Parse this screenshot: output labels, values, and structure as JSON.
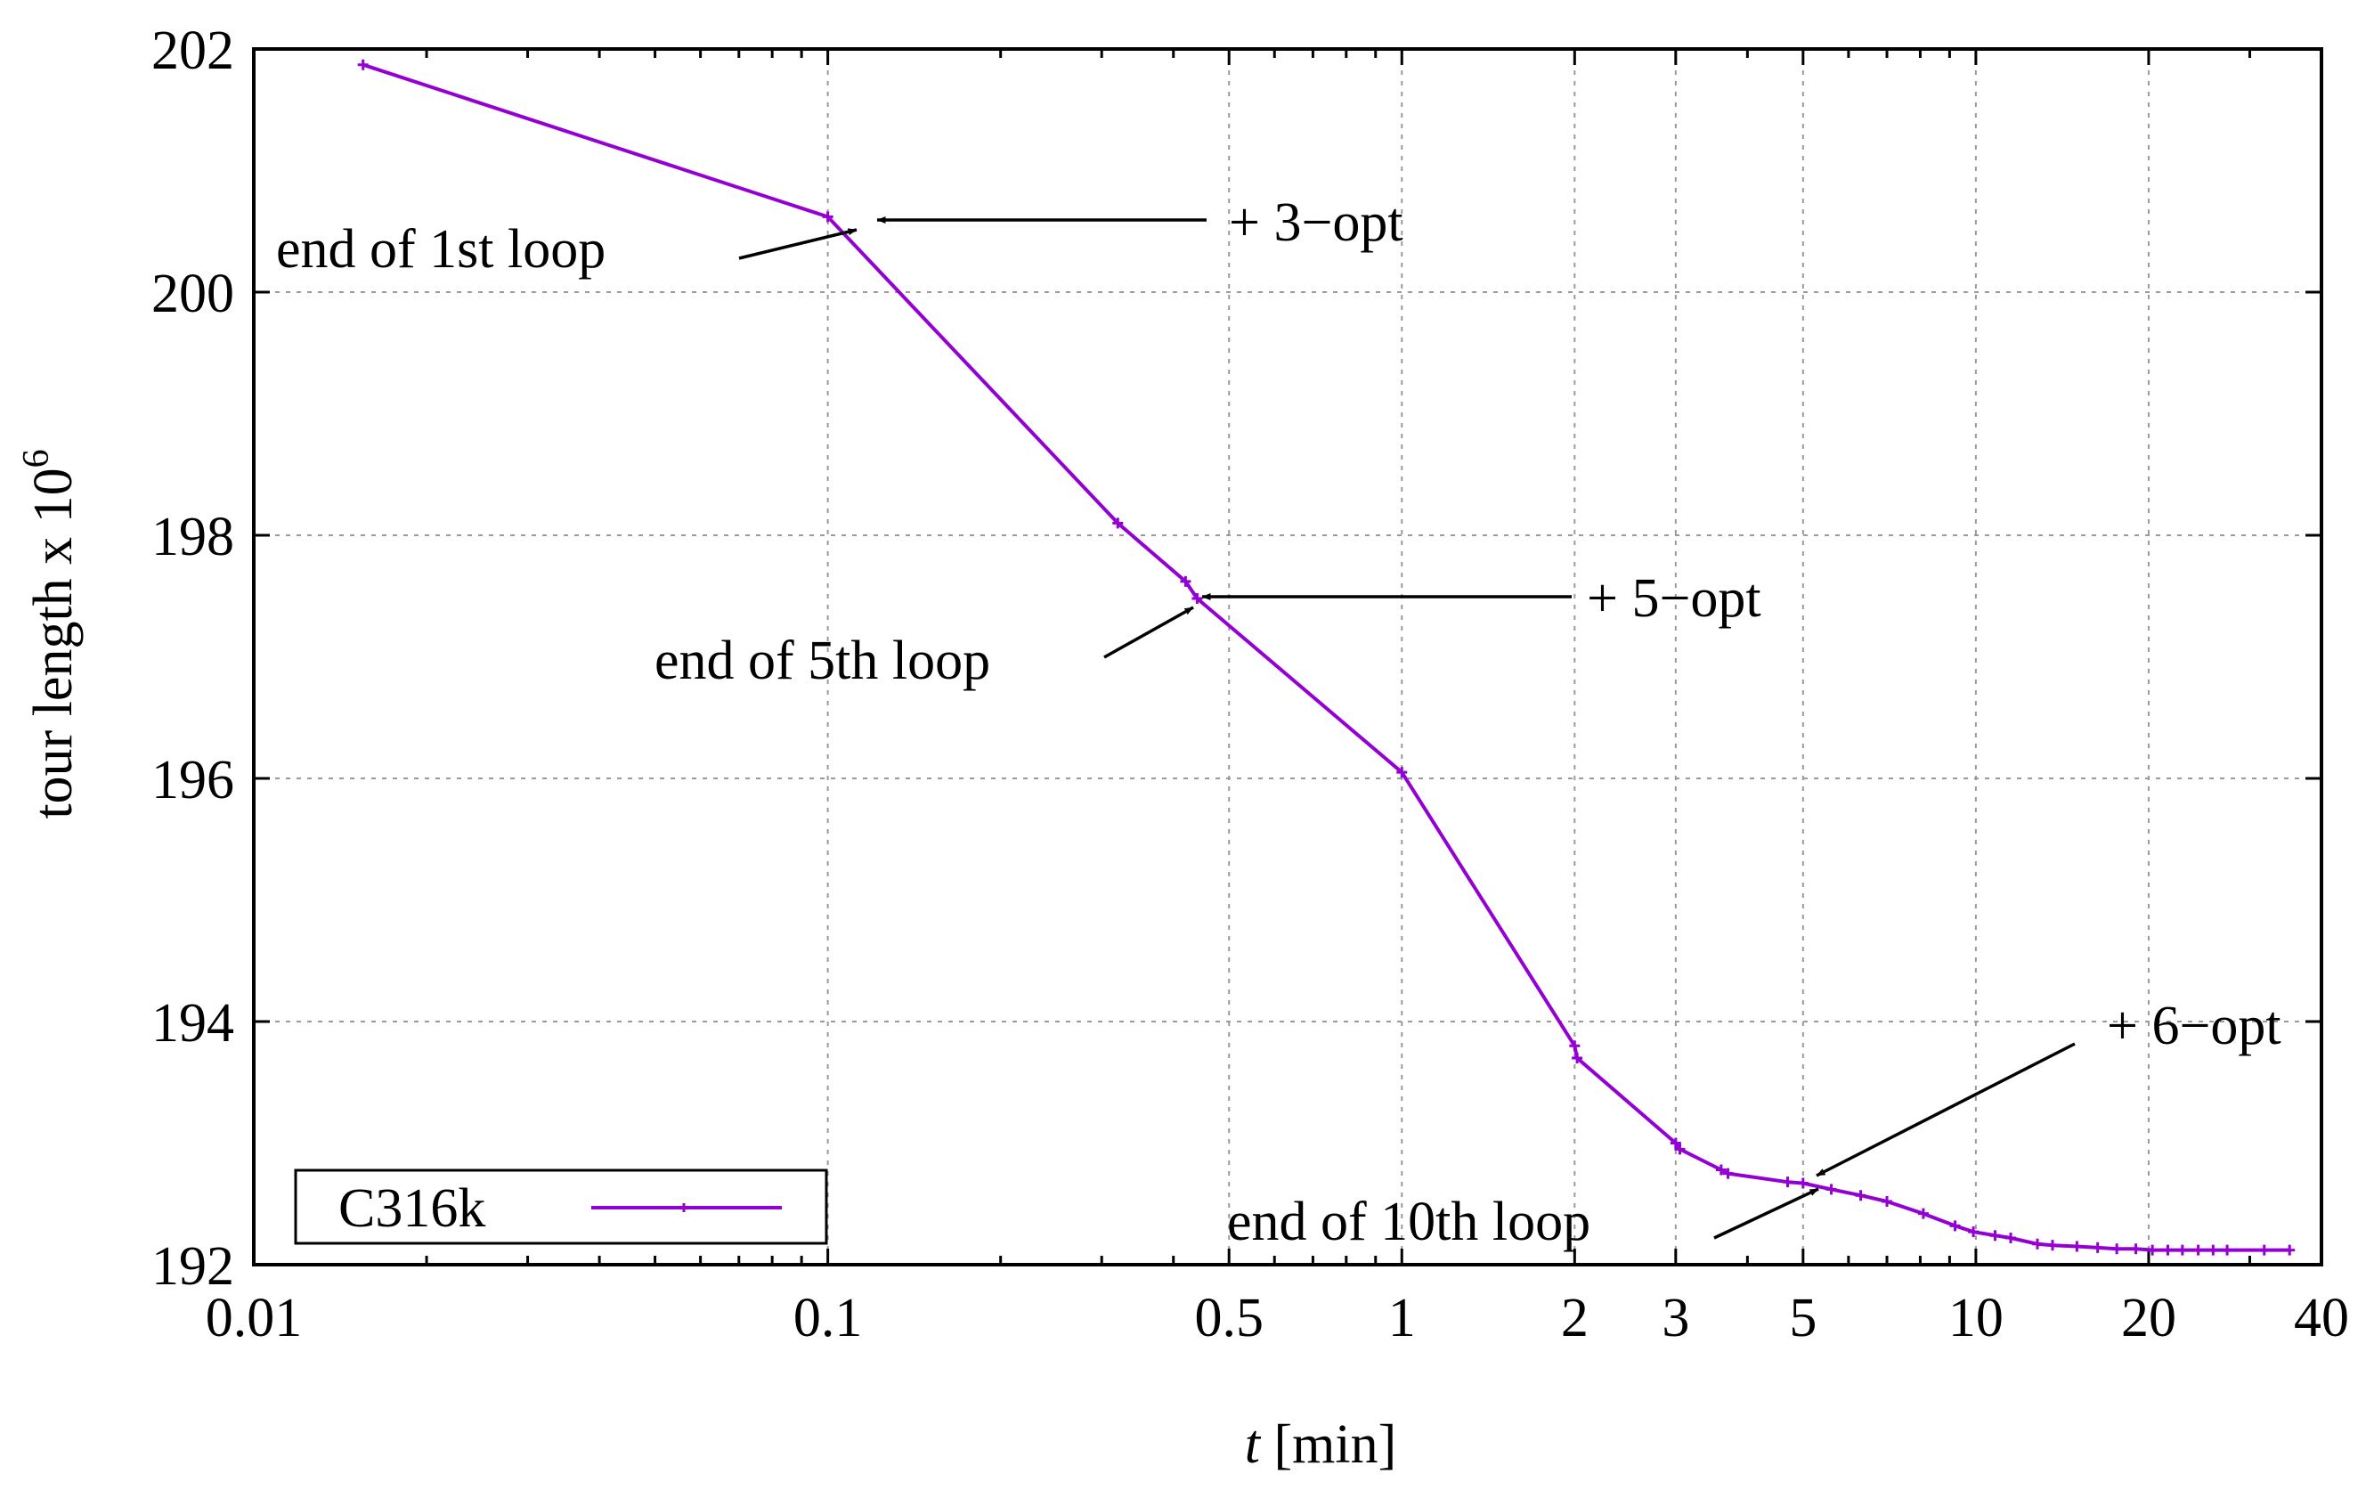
{
  "chart_data": {
    "type": "line",
    "title": "",
    "xlabel_italic": "t",
    "xlabel_rest": " [min]",
    "ylabel": "tour length x 10",
    "ylabel_exponent": "6",
    "xscale": "log",
    "xlim": [
      0.01,
      40
    ],
    "ylim": [
      192,
      202
    ],
    "x_ticks": [
      0.01,
      0.1,
      0.5,
      1,
      2,
      3,
      5,
      10,
      20,
      40
    ],
    "x_tick_labels": [
      "0.01",
      "0.1",
      "0.5",
      "1",
      "2",
      "3",
      "5",
      "10",
      "20",
      "40"
    ],
    "x_grid": [
      0.1,
      0.5,
      1,
      2,
      3,
      5,
      10,
      20
    ],
    "y_ticks": [
      192,
      194,
      196,
      198,
      200,
      202
    ],
    "y_tick_labels": [
      "192",
      "194",
      "196",
      "198",
      "200",
      "202"
    ],
    "grid": true,
    "legend_position": "bottom-left",
    "series": [
      {
        "name": "C316k",
        "color": "#9400d3",
        "marker": "plus",
        "points": [
          [
            0.0155,
            201.87
          ],
          [
            0.1,
            200.62
          ],
          [
            0.32,
            198.1
          ],
          [
            0.42,
            197.62
          ],
          [
            0.44,
            197.48
          ],
          [
            1.0,
            196.05
          ],
          [
            2.0,
            193.8
          ],
          [
            2.02,
            193.7
          ],
          [
            3.0,
            193.0
          ],
          [
            3.05,
            192.95
          ],
          [
            3.6,
            192.78
          ],
          [
            3.7,
            192.75
          ],
          [
            4.7,
            192.68
          ],
          [
            5.0,
            192.67
          ],
          [
            5.6,
            192.62
          ],
          [
            6.3,
            192.57
          ],
          [
            7.0,
            192.52
          ],
          [
            8.1,
            192.42
          ],
          [
            9.2,
            192.32
          ],
          [
            9.9,
            192.27
          ],
          [
            10.8,
            192.24
          ],
          [
            11.5,
            192.22
          ],
          [
            12.8,
            192.17
          ],
          [
            13.6,
            192.16
          ],
          [
            15.0,
            192.15
          ],
          [
            16.3,
            192.14
          ],
          [
            17.6,
            192.13
          ],
          [
            19.0,
            192.13
          ],
          [
            20.3,
            192.12
          ],
          [
            21.6,
            192.12
          ],
          [
            22.9,
            192.12
          ],
          [
            24.4,
            192.12
          ],
          [
            25.9,
            192.12
          ],
          [
            27.4,
            192.12
          ],
          [
            31.8,
            192.12
          ],
          [
            35.2,
            192.12
          ]
        ]
      }
    ],
    "annotations": [
      {
        "id": "loop1",
        "text": "end of 1st loop"
      },
      {
        "id": "opt3",
        "text": "+ 3−opt"
      },
      {
        "id": "loop5",
        "text": "end of 5th loop"
      },
      {
        "id": "opt5",
        "text": "+ 5−opt"
      },
      {
        "id": "opt6",
        "text": "+ 6−opt"
      },
      {
        "id": "loop10",
        "text": "end of 10th loop"
      }
    ]
  }
}
